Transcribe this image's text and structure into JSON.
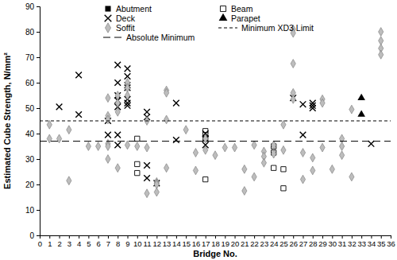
{
  "chart_data": {
    "type": "scatter",
    "x_label": "Bridge No.",
    "y_label": "Estimated Cube Strength, N/mm²",
    "xlim": [
      0,
      36
    ],
    "xticks": [
      0,
      1,
      2,
      3,
      4,
      5,
      6,
      7,
      8,
      9,
      10,
      11,
      12,
      13,
      14,
      15,
      16,
      17,
      18,
      19,
      20,
      21,
      22,
      23,
      24,
      25,
      26,
      27,
      28,
      29,
      30,
      31,
      32,
      33,
      34,
      35,
      36
    ],
    "ylim": [
      0,
      90
    ],
    "yticks": [
      0,
      10,
      20,
      30,
      40,
      50,
      60,
      70,
      80,
      90
    ],
    "grid": false,
    "legend": "top-left",
    "series": [
      {
        "name": "Abutment",
        "marker": "square",
        "color": "#000000",
        "x": [],
        "values": []
      },
      {
        "name": "Beam",
        "marker": "square-open",
        "color": "#000000",
        "x": [
          10,
          10,
          10,
          17,
          17,
          17,
          17,
          24,
          24,
          24,
          25,
          25
        ],
        "values": [
          38,
          28,
          24.5,
          41,
          39.5,
          38,
          22,
          35,
          32.5,
          26.5,
          26,
          18.5
        ]
      },
      {
        "name": "Deck",
        "marker": "x",
        "color": "#000000",
        "x": [
          2,
          4,
          4,
          7,
          7,
          8,
          8,
          8,
          8,
          8,
          8,
          8,
          9,
          9,
          9,
          9,
          9,
          9,
          9,
          11,
          11,
          11,
          11,
          12,
          14,
          14,
          17,
          17,
          17,
          26,
          27,
          27,
          28,
          28,
          28,
          34
        ],
        "values": [
          50.5,
          63,
          47.5,
          45,
          39.5,
          67,
          60,
          55,
          53,
          50.5,
          39.5,
          35.5,
          65.5,
          62.5,
          59,
          58,
          53.5,
          52,
          51,
          48.5,
          46.5,
          27.5,
          22.5,
          20.5,
          52,
          37.5,
          40,
          38,
          35.5,
          54,
          51.5,
          39.5,
          52,
          51,
          50,
          36
        ]
      },
      {
        "name": "Parapet",
        "marker": "triangle",
        "color": "#000000",
        "x": [
          33,
          33
        ],
        "values": [
          54,
          47.5
        ]
      },
      {
        "name": "Soffit",
        "marker": "diamond",
        "color": "#bdbdbd",
        "x": [
          1,
          1,
          2,
          3,
          3,
          5,
          6,
          7,
          7,
          7,
          7,
          7,
          7,
          8,
          8,
          8,
          8,
          9,
          9,
          9,
          9,
          10,
          11,
          11,
          11,
          12,
          12,
          12,
          12,
          13,
          13,
          13,
          13,
          15,
          16,
          16,
          17,
          17,
          18,
          19,
          20,
          21,
          21,
          22,
          22,
          23,
          23,
          23,
          24,
          24,
          25,
          25,
          26,
          26,
          26,
          26,
          26,
          27,
          27,
          28,
          28,
          29,
          29,
          29,
          30,
          31,
          31,
          31,
          32,
          32,
          35,
          35,
          35,
          35
        ],
        "values": [
          43.5,
          38,
          38,
          41.5,
          21.5,
          35,
          35,
          54,
          47,
          45.5,
          36,
          35,
          30,
          55,
          52,
          48.5,
          26.5,
          60,
          58,
          55,
          35.5,
          35,
          45,
          34.5,
          16.5,
          21,
          20.5,
          20,
          17,
          57,
          56,
          45.5,
          26.5,
          41.5,
          32.5,
          25.5,
          38,
          33.5,
          31.5,
          34.5,
          34.5,
          26,
          17.5,
          35.5,
          23,
          33,
          31,
          28.5,
          35.5,
          32,
          43.5,
          33.5,
          81,
          79.5,
          67.5,
          56,
          53.5,
          32.5,
          22,
          30.5,
          25.5,
          53.5,
          52,
          34.5,
          26,
          38,
          35,
          31.5,
          49.5,
          23,
          80,
          76.5,
          73.5,
          71
        ]
      },
      {
        "name": "Minimum XD3 Limit",
        "type": "line",
        "line_style": "dashed",
        "color": "#000000",
        "x": [
          0,
          36
        ],
        "values": [
          45,
          45
        ]
      },
      {
        "name": "Absolute Minimum",
        "type": "line",
        "line_style": "long-dashed",
        "color": "#000000",
        "x": [
          0,
          36
        ],
        "values": [
          37,
          37
        ]
      }
    ]
  }
}
